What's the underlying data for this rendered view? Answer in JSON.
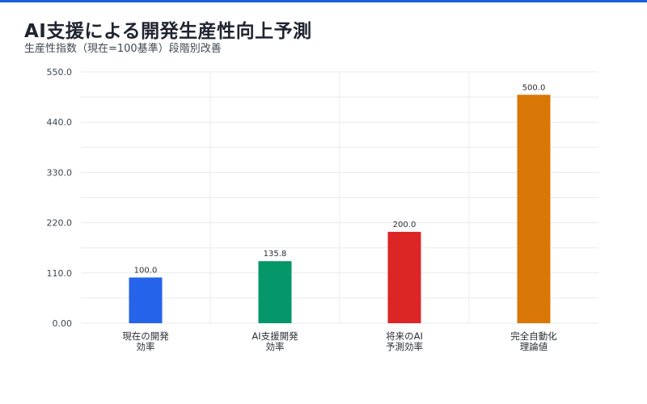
{
  "colors": {
    "accent_bar": "#1d5fd6"
  },
  "title": "AI支援による開発生産性向上予測",
  "subtitle": "生産性指数（現在=100基準）段階別改善",
  "chart_data": {
    "type": "bar",
    "title": "AI支援による開発生産性向上予測",
    "subtitle": "生産性指数（現在=100基準）段階別改善",
    "xlabel": "",
    "ylabel": "",
    "ylim": [
      0,
      550
    ],
    "yticks": [
      "0.00",
      "110.0",
      "220.0",
      "330.0",
      "440.0",
      "550.0"
    ],
    "grid": true,
    "categories": [
      [
        "現在の開発",
        "効率"
      ],
      [
        "AI支援開発",
        "効率"
      ],
      [
        "将来のAI",
        "予測効率"
      ],
      [
        "完全自動化",
        "理論値"
      ]
    ],
    "values": [
      100.0,
      135.8,
      200.0,
      500.0
    ],
    "value_labels": [
      "100.0",
      "135.8",
      "200.0",
      "500.0"
    ],
    "bar_colors": [
      "#2563eb",
      "#059669",
      "#dc2626",
      "#d97706"
    ]
  }
}
